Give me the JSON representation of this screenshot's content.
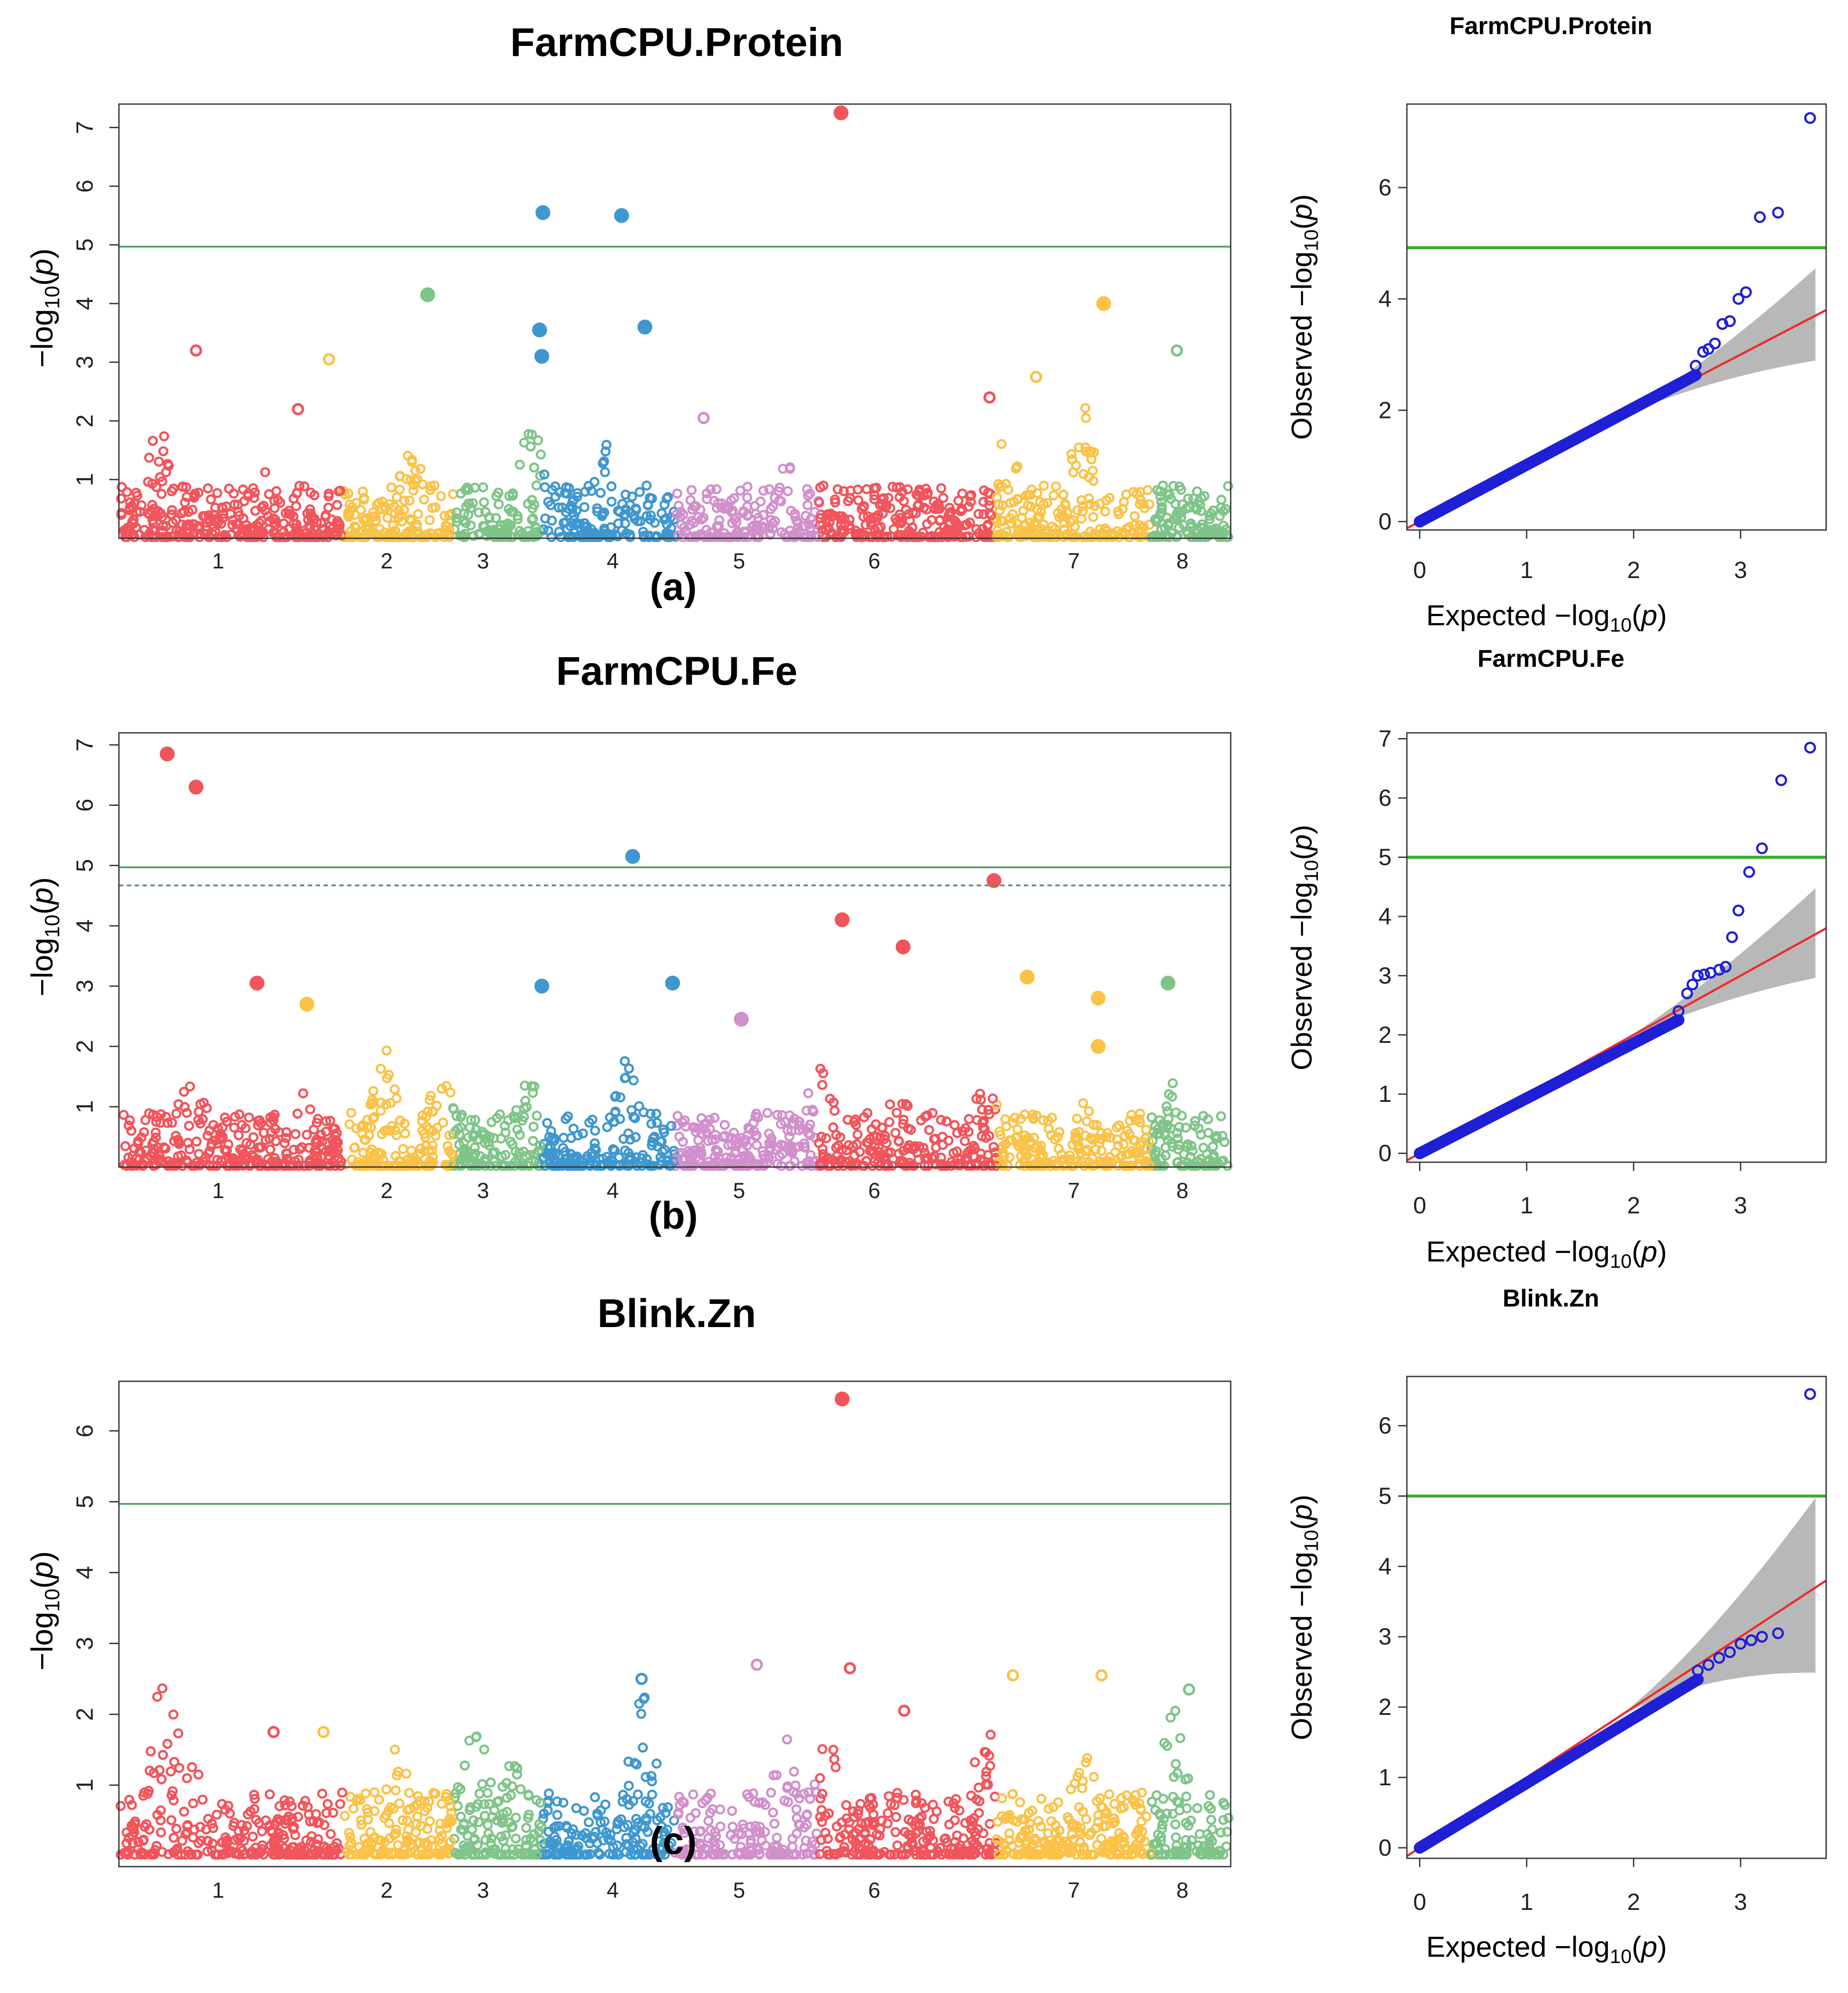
{
  "palette": {
    "1": "#f2545b",
    "2": "#fbc248",
    "3": "#7fc488",
    "4": "#3f97cf",
    "5": "#d18fcb",
    "6": "#f2545b",
    "7": "#fbc248",
    "8": "#7fc488",
    "threshold_line": "#4f9a62",
    "qq_threshold": "#3fae32",
    "qq_points": "#1f1fd6",
    "qq_expected": "#ef2a2a",
    "qq_band": "#b8b8b8"
  },
  "chart_data": [
    {
      "type": "scatter",
      "subtype": "manhattan",
      "panel_label": "(a)",
      "title": "FarmCPU.Protein",
      "ylabel": "−log10(p)",
      "xlabel": "",
      "ylim": [
        0,
        7.4
      ],
      "yticks": [
        1,
        2,
        3,
        4,
        5,
        6,
        7
      ],
      "chromosomes": [
        "1",
        "2",
        "3",
        "4",
        "5",
        "6",
        "7",
        "8"
      ],
      "chrom_ranges": [
        [
          0.0,
          0.2
        ],
        [
          0.2,
          0.3
        ],
        [
          0.3,
          0.38
        ],
        [
          0.38,
          0.5
        ],
        [
          0.5,
          0.63
        ],
        [
          0.63,
          0.79
        ],
        [
          0.79,
          0.93
        ],
        [
          0.93,
          1.0
        ]
      ],
      "thresholds": [
        {
          "value": 4.97,
          "style": "solid"
        }
      ],
      "background": {
        "seed": 17,
        "peaks": [
          [
            0.035,
            2.1
          ],
          [
            0.13,
            1.2
          ],
          [
            0.26,
            1.9
          ],
          [
            0.265,
            1.2
          ],
          [
            0.37,
            2.5
          ],
          [
            0.44,
            1.8
          ],
          [
            0.6,
            1.6
          ],
          [
            0.7,
            1.4
          ],
          [
            0.8,
            2.0
          ],
          [
            0.87,
            2.6
          ],
          [
            0.94,
            1.3
          ]
        ]
      },
      "highlights": [
        {
          "chrom": "6",
          "pos": 0.65,
          "y": 7.25,
          "solid": true
        },
        {
          "chrom": "4",
          "pos": 0.381,
          "y": 5.55,
          "solid": true
        },
        {
          "chrom": "4",
          "pos": 0.452,
          "y": 5.5,
          "solid": true
        },
        {
          "chrom": "4",
          "pos": 0.378,
          "y": 3.55,
          "solid": true
        },
        {
          "chrom": "4",
          "pos": 0.38,
          "y": 3.1,
          "solid": true
        },
        {
          "chrom": "4",
          "pos": 0.473,
          "y": 3.6,
          "solid": true
        },
        {
          "chrom": "3",
          "pos": 0.277,
          "y": 4.15,
          "solid": true
        },
        {
          "chrom": "7",
          "pos": 0.887,
          "y": 4.0,
          "solid": true
        },
        {
          "chrom": "1",
          "pos": 0.068,
          "y": 3.2,
          "solid": false
        },
        {
          "chrom": "2",
          "pos": 0.188,
          "y": 3.05,
          "solid": false
        },
        {
          "chrom": "7",
          "pos": 0.826,
          "y": 2.75,
          "solid": false
        },
        {
          "chrom": "8",
          "pos": 0.953,
          "y": 3.2,
          "solid": false
        },
        {
          "chrom": "6",
          "pos": 0.784,
          "y": 2.4,
          "solid": false
        },
        {
          "chrom": "5",
          "pos": 0.526,
          "y": 2.05,
          "solid": false
        },
        {
          "chrom": "1",
          "pos": 0.16,
          "y": 2.2,
          "solid": false
        }
      ]
    },
    {
      "type": "scatter",
      "subtype": "qq",
      "title": "FarmCPU.Protein",
      "xlabel": "Expected −log10(p)",
      "ylabel": "Observed −log10(p)",
      "xlim": [
        -0.12,
        3.8
      ],
      "ylim": [
        -0.15,
        7.5
      ],
      "xticks": [
        0,
        1,
        2,
        3
      ],
      "yticks": [
        0,
        2,
        4,
        6
      ],
      "threshold": 4.92,
      "expected_max": 3.7,
      "band_max_width": 1.7,
      "observed_slope": 1.02,
      "observed_tail": [
        [
          2.58,
          2.8
        ],
        [
          2.65,
          3.05
        ],
        [
          2.7,
          3.1
        ],
        [
          2.76,
          3.2
        ],
        [
          2.83,
          3.55
        ],
        [
          2.9,
          3.6
        ],
        [
          2.98,
          4.0
        ],
        [
          3.05,
          4.12
        ],
        [
          3.18,
          5.47
        ],
        [
          3.35,
          5.55
        ],
        [
          3.65,
          7.25
        ]
      ]
    },
    {
      "type": "scatter",
      "subtype": "manhattan",
      "panel_label": "(b)",
      "title": "FarmCPU.Fe",
      "ylabel": "−log10(p)",
      "xlabel": "",
      "ylim": [
        0,
        7.2
      ],
      "yticks": [
        1,
        2,
        3,
        4,
        5,
        6,
        7
      ],
      "chromosomes": [
        "1",
        "2",
        "3",
        "4",
        "5",
        "6",
        "7",
        "8"
      ],
      "chrom_ranges": [
        [
          0.0,
          0.2
        ],
        [
          0.2,
          0.3
        ],
        [
          0.3,
          0.38
        ],
        [
          0.38,
          0.5
        ],
        [
          0.5,
          0.63
        ],
        [
          0.63,
          0.79
        ],
        [
          0.79,
          0.93
        ],
        [
          0.93,
          1.0
        ]
      ],
      "thresholds": [
        {
          "value": 4.97,
          "style": "solid"
        },
        {
          "value": 4.67,
          "style": "dashed"
        }
      ],
      "background": {
        "seed": 29,
        "peaks": [
          [
            0.065,
            1.9
          ],
          [
            0.165,
            1.4
          ],
          [
            0.24,
            2.1
          ],
          [
            0.29,
            2.0
          ],
          [
            0.37,
            1.7
          ],
          [
            0.455,
            2.3
          ],
          [
            0.63,
            2.0
          ],
          [
            0.7,
            1.6
          ],
          [
            0.78,
            1.7
          ],
          [
            0.87,
            1.3
          ],
          [
            0.945,
            1.7
          ]
        ]
      },
      "highlights": [
        {
          "chrom": "1",
          "pos": 0.042,
          "y": 6.85,
          "solid": true
        },
        {
          "chrom": "1",
          "pos": 0.068,
          "y": 6.3,
          "solid": true
        },
        {
          "chrom": "4",
          "pos": 0.462,
          "y": 5.15,
          "solid": true
        },
        {
          "chrom": "6",
          "pos": 0.788,
          "y": 4.75,
          "solid": true
        },
        {
          "chrom": "6",
          "pos": 0.651,
          "y": 4.1,
          "solid": true
        },
        {
          "chrom": "6",
          "pos": 0.706,
          "y": 3.65,
          "solid": true
        },
        {
          "chrom": "1",
          "pos": 0.123,
          "y": 3.05,
          "solid": true
        },
        {
          "chrom": "4",
          "pos": 0.38,
          "y": 3.0,
          "solid": true
        },
        {
          "chrom": "4",
          "pos": 0.498,
          "y": 3.05,
          "solid": true
        },
        {
          "chrom": "7",
          "pos": 0.818,
          "y": 3.15,
          "solid": true
        },
        {
          "chrom": "8",
          "pos": 0.945,
          "y": 3.05,
          "solid": true
        },
        {
          "chrom": "2",
          "pos": 0.168,
          "y": 2.7,
          "solid": true
        },
        {
          "chrom": "7",
          "pos": 0.882,
          "y": 2.8,
          "solid": true
        },
        {
          "chrom": "7",
          "pos": 0.882,
          "y": 2.0,
          "solid": true
        },
        {
          "chrom": "5",
          "pos": 0.56,
          "y": 2.45,
          "solid": true
        }
      ]
    },
    {
      "type": "scatter",
      "subtype": "qq",
      "title": "FarmCPU.Fe",
      "xlabel": "Expected −log10(p)",
      "ylabel": "Observed −log10(p)",
      "xlim": [
        -0.12,
        3.8
      ],
      "ylim": [
        -0.15,
        7.1
      ],
      "xticks": [
        0,
        1,
        2,
        3
      ],
      "yticks": [
        0,
        1,
        2,
        3,
        4,
        5,
        6,
        7
      ],
      "threshold": 5.0,
      "expected_max": 3.7,
      "band_max_width": 1.55,
      "observed_slope": 0.93,
      "observed_tail": [
        [
          2.42,
          2.4
        ],
        [
          2.5,
          2.7
        ],
        [
          2.55,
          2.85
        ],
        [
          2.6,
          3.0
        ],
        [
          2.66,
          3.02
        ],
        [
          2.72,
          3.05
        ],
        [
          2.8,
          3.1
        ],
        [
          2.86,
          3.15
        ],
        [
          2.92,
          3.65
        ],
        [
          2.98,
          4.1
        ],
        [
          3.08,
          4.75
        ],
        [
          3.2,
          5.15
        ],
        [
          3.38,
          6.3
        ],
        [
          3.65,
          6.85
        ]
      ]
    },
    {
      "type": "scatter",
      "subtype": "manhattan",
      "panel_label": "(c)",
      "title": "Blink.Zn",
      "ylabel": "−log10(p)",
      "xlabel": "",
      "ylim": [
        -0.15,
        6.7
      ],
      "yticks": [
        1,
        2,
        3,
        4,
        5,
        6
      ],
      "chromosomes": [
        "1",
        "2",
        "3",
        "4",
        "5",
        "6",
        "7",
        "8"
      ],
      "chrom_ranges": [
        [
          0.0,
          0.2
        ],
        [
          0.2,
          0.3
        ],
        [
          0.3,
          0.38
        ],
        [
          0.38,
          0.5
        ],
        [
          0.5,
          0.63
        ],
        [
          0.63,
          0.79
        ],
        [
          0.79,
          0.93
        ],
        [
          0.93,
          1.0
        ]
      ],
      "thresholds": [
        {
          "value": 4.97,
          "style": "solid"
        }
      ],
      "background": {
        "seed": 43,
        "peaks": [
          [
            0.04,
            3.0
          ],
          [
            0.065,
            1.5
          ],
          [
            0.165,
            1.0
          ],
          [
            0.25,
            1.7
          ],
          [
            0.32,
            2.1
          ],
          [
            0.355,
            1.5
          ],
          [
            0.47,
            2.5
          ],
          [
            0.6,
            1.8
          ],
          [
            0.64,
            2.0
          ],
          [
            0.78,
            2.1
          ],
          [
            0.87,
            1.7
          ],
          [
            0.95,
            2.3
          ]
        ]
      },
      "highlights": [
        {
          "chrom": "6",
          "pos": 0.651,
          "y": 6.45,
          "solid": true
        },
        {
          "chrom": "6",
          "pos": 0.658,
          "y": 2.65,
          "solid": false
        },
        {
          "chrom": "7",
          "pos": 0.805,
          "y": 2.55,
          "solid": false
        },
        {
          "chrom": "7",
          "pos": 0.885,
          "y": 2.55,
          "solid": false
        },
        {
          "chrom": "8",
          "pos": 0.964,
          "y": 2.35,
          "solid": false
        },
        {
          "chrom": "5",
          "pos": 0.574,
          "y": 2.7,
          "solid": false
        },
        {
          "chrom": "4",
          "pos": 0.47,
          "y": 2.5,
          "solid": false
        },
        {
          "chrom": "6",
          "pos": 0.707,
          "y": 2.05,
          "solid": false
        },
        {
          "chrom": "1",
          "pos": 0.138,
          "y": 1.75,
          "solid": false
        },
        {
          "chrom": "2",
          "pos": 0.183,
          "y": 1.75,
          "solid": false
        }
      ]
    },
    {
      "type": "scatter",
      "subtype": "qq",
      "title": "Blink.Zn",
      "xlabel": "Expected −log10(p)",
      "ylabel": "Observed −log10(p)",
      "xlim": [
        -0.12,
        3.8
      ],
      "ylim": [
        -0.15,
        6.7
      ],
      "xticks": [
        0,
        1,
        2,
        3
      ],
      "yticks": [
        0,
        1,
        2,
        3,
        4,
        5,
        6
      ],
      "threshold": 5.0,
      "expected_max": 3.7,
      "band_max_width": 2.55,
      "observed_slope": 0.92,
      "observed_tail": [
        [
          2.6,
          2.52
        ],
        [
          2.7,
          2.6
        ],
        [
          2.8,
          2.7
        ],
        [
          2.9,
          2.78
        ],
        [
          3.0,
          2.9
        ],
        [
          3.1,
          2.95
        ],
        [
          3.2,
          3.0
        ],
        [
          3.35,
          3.05
        ],
        [
          3.65,
          6.45
        ]
      ]
    }
  ]
}
